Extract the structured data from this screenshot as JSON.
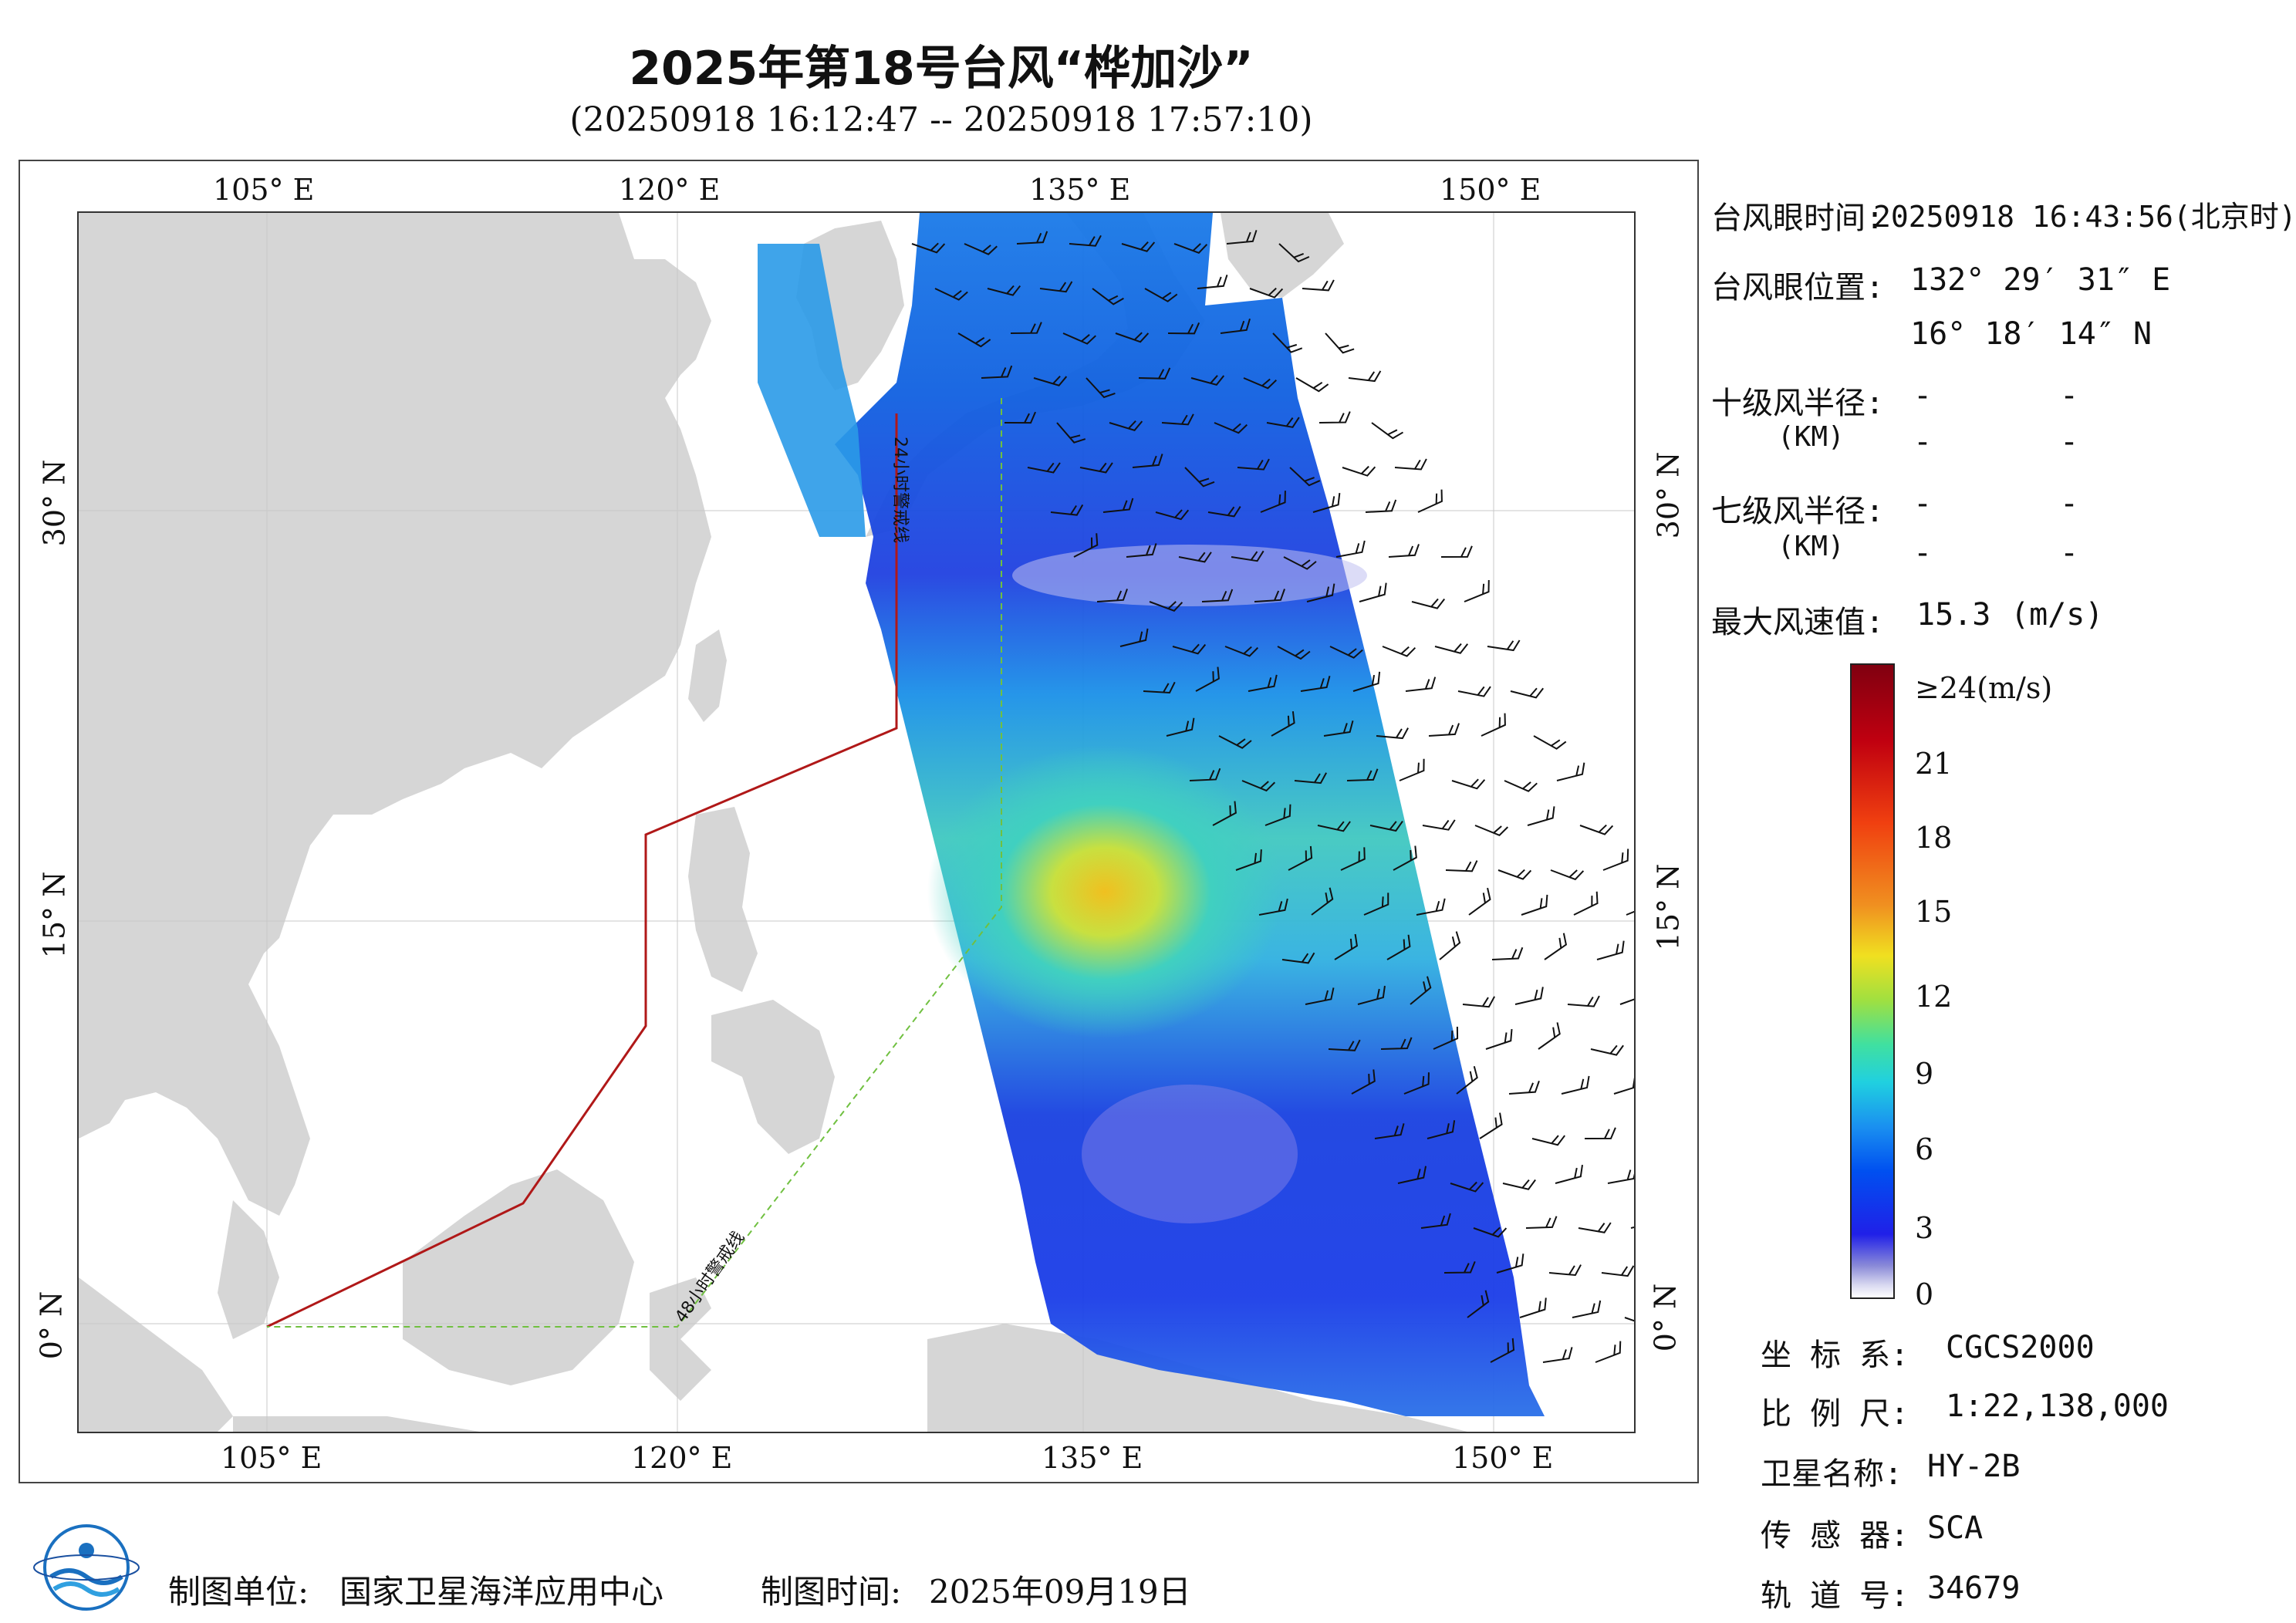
{
  "header": {
    "title": "2025年第18号台风“桦加沙”",
    "subtitle": "(20250918 16:12:47 -- 20250918 17:57:10)"
  },
  "map": {
    "lon_ticks": [
      "105° E",
      "120° E",
      "135° E",
      "150° E"
    ],
    "lat_ticks": [
      "30° N",
      "15° N",
      "0° N"
    ],
    "line_24h": "24小时警戒线",
    "line_48h": "48小时警戒线"
  },
  "info": {
    "eye_time_label": "台风眼时间:",
    "eye_time_value": "20250918 16:43:56(北京时)",
    "eye_pos_label": "台风眼位置:",
    "eye_lon": "132° 29′ 31″ E",
    "eye_lat": "16° 18′ 14″ N",
    "r10_label": "十级风半径:",
    "r7_label": "七级风半径:",
    "km_label": "(KM)",
    "dash": "-",
    "max_wind_label": "最大风速值:",
    "max_wind_value": "15.3",
    "max_wind_unit": "(m/s)"
  },
  "colorbar": {
    "labels": [
      "≥24(m/s)",
      "21",
      "18",
      "15",
      "12",
      "9",
      "6",
      "3",
      "0"
    ]
  },
  "meta": {
    "crs_label": "坐 标 系:",
    "crs_value": "CGCS2000",
    "scale_label": "比 例 尺:",
    "scale_value": "1:22,138,000",
    "sat_label": "卫星名称:",
    "sat_value": "HY-2B",
    "sensor_label": "传 感 器:",
    "sensor_value": "SCA",
    "orbit_label": "轨 道 号:",
    "orbit_value": "34679"
  },
  "footer": {
    "org_label": "制图单位:",
    "org_value": "国家卫星海洋应用中心",
    "date_label": "制图时间:",
    "date_value": "2025年09月19日"
  },
  "colors": {
    "land": "#d6d6d6",
    "sea": "#ffffff",
    "line_24h": "#b01818",
    "line_48h": "#70c040"
  }
}
